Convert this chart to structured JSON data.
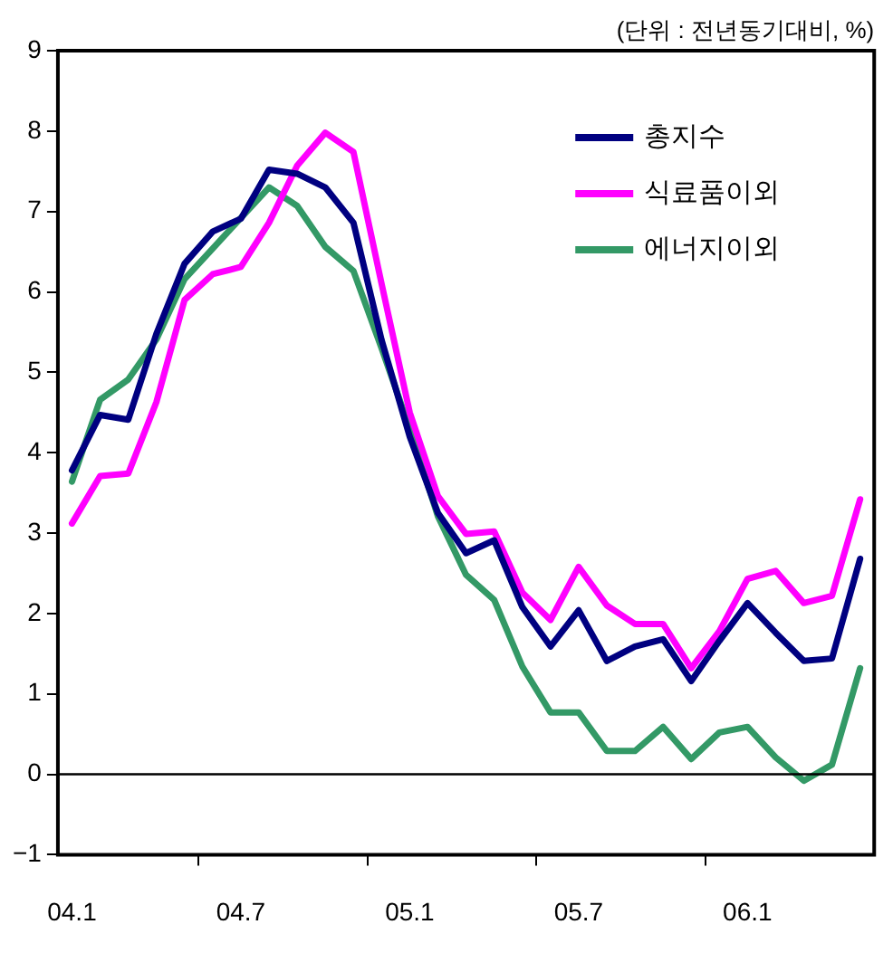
{
  "chart_data": {
    "type": "line",
    "annotations": [
      "(단위 : 전년동기대비, %)"
    ],
    "categories": [
      "04.1",
      null,
      null,
      null,
      null,
      null,
      "04.7",
      null,
      null,
      null,
      null,
      null,
      "05.1",
      null,
      null,
      null,
      null,
      null,
      "05.7",
      null,
      null,
      null,
      null,
      null,
      "06.1",
      null,
      null,
      null,
      null
    ],
    "series": [
      {
        "name": "총지수",
        "color": "#000080",
        "values": [
          3.78,
          4.47,
          4.41,
          5.48,
          6.35,
          6.75,
          6.91,
          7.52,
          7.47,
          7.3,
          6.86,
          5.4,
          4.2,
          3.25,
          2.75,
          2.91,
          2.08,
          1.59,
          2.04,
          1.41,
          1.59,
          1.68,
          1.16,
          1.66,
          2.13,
          1.76,
          1.41,
          1.44,
          2.68
        ]
      },
      {
        "name": "식료품이외",
        "color": "#ff00ff",
        "values": [
          3.12,
          3.71,
          3.74,
          4.63,
          5.9,
          6.22,
          6.31,
          6.86,
          7.57,
          7.98,
          7.74,
          6.1,
          4.5,
          3.46,
          2.99,
          3.02,
          2.26,
          1.92,
          2.58,
          2.1,
          1.87,
          1.87,
          1.32,
          1.78,
          2.43,
          2.53,
          2.13,
          2.22,
          3.42
        ]
      },
      {
        "name": "에너지이외",
        "color": "#339966",
        "values": [
          3.64,
          4.66,
          4.91,
          5.41,
          6.16,
          6.54,
          6.92,
          7.3,
          7.07,
          6.56,
          6.26,
          5.3,
          4.3,
          3.21,
          2.48,
          2.17,
          1.34,
          0.77,
          0.77,
          0.29,
          0.29,
          0.59,
          0.19,
          0.52,
          0.59,
          0.21,
          -0.08,
          0.12,
          1.32
        ]
      }
    ],
    "ylim": [
      -1,
      9
    ],
    "yticks": [
      -1,
      0,
      1,
      2,
      3,
      4,
      5,
      6,
      7,
      8,
      9
    ],
    "ref_lines": [
      {
        "axis": "y",
        "value": 0,
        "color": "#000000"
      }
    ],
    "grid": false,
    "legend": "top right",
    "marker": "none",
    "line_style": "solid"
  }
}
